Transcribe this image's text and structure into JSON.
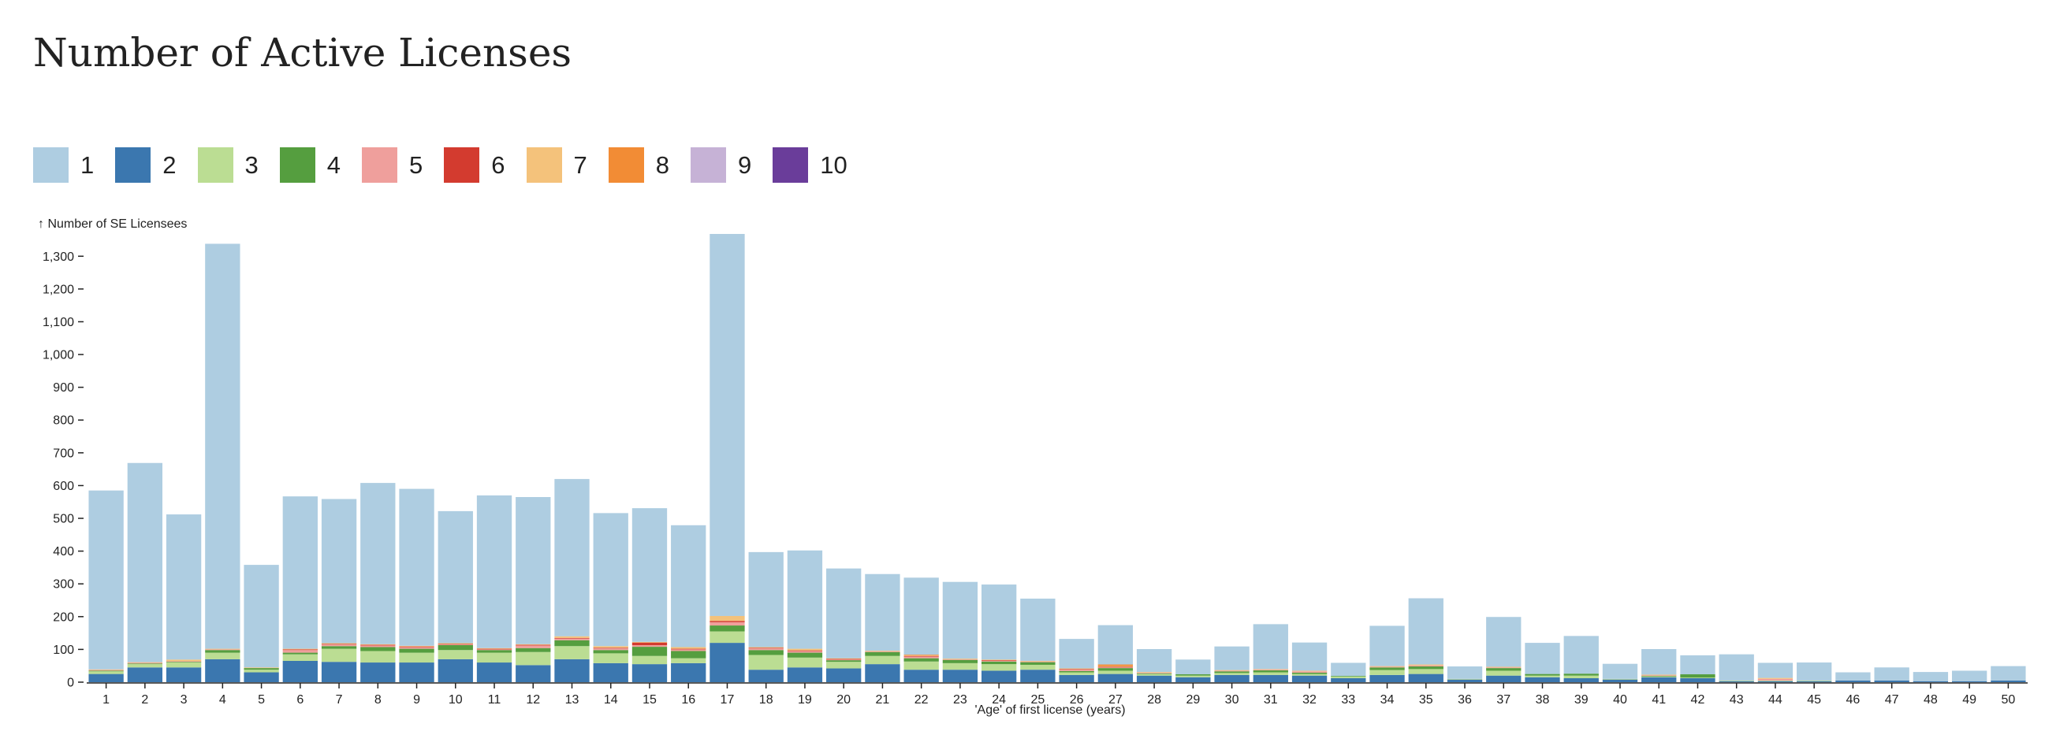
{
  "chart_data": {
    "type": "bar",
    "stacked": true,
    "title": "Number of Active Licenses",
    "ylabel": "↑ Number of SE Licensees",
    "xlabel": "'Age' of first license (years)",
    "ylim": [
      0,
      1380
    ],
    "yticks": [
      0,
      100,
      200,
      300,
      400,
      500,
      600,
      700,
      800,
      900,
      1000,
      1100,
      1200,
      1300
    ],
    "legend_position": "top-left",
    "categories": [
      "1",
      "2",
      "3",
      "4",
      "5",
      "6",
      "7",
      "8",
      "9",
      "10",
      "11",
      "12",
      "13",
      "14",
      "15",
      "16",
      "17",
      "18",
      "19",
      "20",
      "21",
      "22",
      "23",
      "24",
      "25",
      "26",
      "27",
      "28",
      "29",
      "30",
      "31",
      "32",
      "33",
      "34",
      "35",
      "36",
      "37",
      "38",
      "39",
      "40",
      "41",
      "42",
      "43",
      "44",
      "45",
      "46",
      "47",
      "48",
      "49",
      "50"
    ],
    "series": [
      {
        "name": "1",
        "color": "#aecde1",
        "values": [
          546,
          608,
          443,
          1236,
          313,
          465,
          440,
          492,
          479,
          403,
          466,
          449,
          480,
          406,
          408,
          372,
          1166,
          290,
          300,
          274,
          234,
          235,
          234,
          229,
          190,
          90,
          120,
          70,
          45,
          72,
          137,
          86,
          40,
          123,
          202,
          38,
          152,
          95,
          115,
          46,
          78,
          58,
          80,
          46,
          55,
          25,
          40,
          28,
          32,
          44
        ]
      },
      {
        "name": "2",
        "color": "#3b77af",
        "values": [
          25,
          45,
          45,
          70,
          30,
          65,
          62,
          60,
          60,
          70,
          60,
          52,
          70,
          58,
          55,
          58,
          120,
          38,
          45,
          42,
          55,
          38,
          38,
          35,
          38,
          22,
          25,
          20,
          15,
          22,
          22,
          20,
          12,
          22,
          25,
          8,
          20,
          15,
          12,
          8,
          15,
          12,
          3,
          3,
          3,
          5,
          5,
          3,
          3,
          5
        ]
      },
      {
        "name": "3",
        "color": "#bbdd93",
        "values": [
          8,
          10,
          15,
          20,
          8,
          20,
          40,
          35,
          30,
          28,
          30,
          40,
          40,
          30,
          25,
          15,
          35,
          45,
          30,
          20,
          25,
          25,
          20,
          20,
          15,
          8,
          10,
          5,
          5,
          6,
          8,
          5,
          5,
          15,
          15,
          2,
          15,
          5,
          8,
          2,
          2,
          2,
          2,
          2,
          2,
          0,
          0,
          0,
          0,
          0
        ]
      },
      {
        "name": "4",
        "color": "#559e3f",
        "values": [
          2,
          2,
          2,
          8,
          5,
          5,
          8,
          12,
          12,
          15,
          8,
          12,
          18,
          10,
          28,
          22,
          18,
          15,
          15,
          5,
          12,
          10,
          10,
          8,
          8,
          4,
          8,
          2,
          4,
          5,
          6,
          4,
          2,
          8,
          8,
          0,
          8,
          5,
          6,
          0,
          2,
          10,
          0,
          0,
          0,
          0,
          0,
          0,
          0,
          0
        ]
      },
      {
        "name": "5",
        "color": "#ef9f9c",
        "values": [
          2,
          2,
          2,
          2,
          0,
          8,
          5,
          5,
          5,
          2,
          2,
          8,
          5,
          5,
          5,
          5,
          10,
          5,
          5,
          2,
          2,
          5,
          2,
          2,
          2,
          4,
          2,
          2,
          0,
          2,
          2,
          4,
          0,
          2,
          3,
          0,
          2,
          0,
          0,
          0,
          2,
          0,
          0,
          5,
          0,
          0,
          0,
          0,
          0,
          0
        ]
      },
      {
        "name": "6",
        "color": "#d33b2f",
        "values": [
          0,
          0,
          0,
          0,
          0,
          2,
          2,
          2,
          2,
          2,
          2,
          2,
          2,
          2,
          8,
          2,
          4,
          2,
          2,
          2,
          0,
          2,
          0,
          2,
          0,
          2,
          2,
          0,
          0,
          0,
          0,
          0,
          0,
          0,
          0,
          0,
          0,
          0,
          0,
          0,
          0,
          0,
          0,
          0,
          0,
          0,
          0,
          0,
          0,
          0
        ]
      },
      {
        "name": "7",
        "color": "#f4c27b",
        "values": [
          2,
          2,
          5,
          2,
          2,
          2,
          2,
          2,
          2,
          2,
          2,
          2,
          5,
          5,
          2,
          5,
          15,
          2,
          5,
          2,
          2,
          2,
          2,
          2,
          2,
          2,
          2,
          2,
          0,
          2,
          2,
          2,
          0,
          2,
          3,
          0,
          2,
          0,
          0,
          0,
          2,
          0,
          0,
          3,
          0,
          0,
          0,
          0,
          0,
          0
        ]
      },
      {
        "name": "8",
        "color": "#f28c35",
        "values": [
          0,
          0,
          0,
          0,
          0,
          0,
          0,
          0,
          0,
          0,
          0,
          0,
          0,
          0,
          0,
          0,
          0,
          0,
          0,
          0,
          0,
          2,
          0,
          0,
          0,
          0,
          5,
          0,
          0,
          0,
          0,
          0,
          0,
          0,
          0,
          0,
          0,
          0,
          0,
          0,
          0,
          0,
          0,
          0,
          0,
          0,
          0,
          0,
          0,
          0
        ]
      },
      {
        "name": "9",
        "color": "#c6b2d6",
        "values": [
          0,
          0,
          0,
          0,
          0,
          0,
          0,
          0,
          0,
          0,
          0,
          0,
          0,
          0,
          0,
          0,
          0,
          0,
          0,
          0,
          0,
          0,
          0,
          0,
          0,
          0,
          0,
          0,
          0,
          0,
          0,
          0,
          0,
          0,
          0,
          0,
          0,
          0,
          0,
          0,
          0,
          0,
          0,
          0,
          0,
          0,
          0,
          0,
          0,
          0
        ]
      },
      {
        "name": "10",
        "color": "#6a3d9a",
        "values": [
          0,
          0,
          0,
          0,
          0,
          0,
          0,
          0,
          0,
          0,
          0,
          0,
          0,
          0,
          0,
          0,
          0,
          0,
          0,
          0,
          0,
          0,
          0,
          0,
          0,
          0,
          0,
          0,
          0,
          0,
          0,
          0,
          0,
          0,
          0,
          0,
          0,
          0,
          0,
          0,
          0,
          0,
          0,
          0,
          0,
          0,
          0,
          0,
          0,
          0
        ]
      }
    ]
  }
}
